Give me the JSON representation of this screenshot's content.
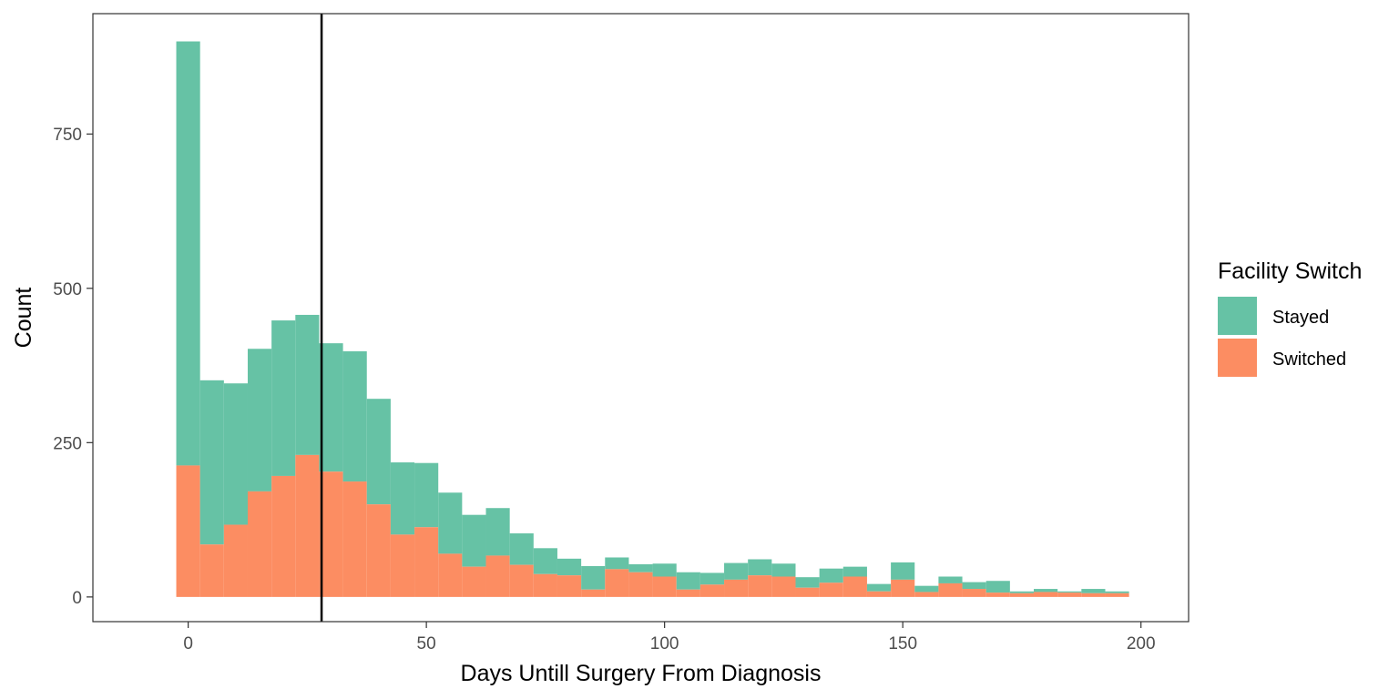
{
  "chart_data": {
    "type": "bar",
    "stacked": true,
    "title": "",
    "xlabel": "Days Untill Surgery From Diagnosis",
    "ylabel": "Count",
    "xlim": [
      -20,
      210
    ],
    "ylim": [
      -40,
      945
    ],
    "bin_width": 5,
    "x_ticks": [
      0,
      50,
      100,
      150,
      200
    ],
    "y_ticks": [
      0,
      250,
      500,
      750
    ],
    "x_tick_labels": [
      "0",
      "50",
      "100",
      "150",
      "200"
    ],
    "y_tick_labels": [
      "0",
      "250",
      "500",
      "750"
    ],
    "vline_x": 28,
    "grid": false,
    "legend": {
      "title": "Facility Switch",
      "position": "right",
      "entries": [
        "Stayed",
        "Switched"
      ]
    },
    "bin_centers": [
      0,
      5,
      10,
      15,
      20,
      25,
      30,
      35,
      40,
      45,
      50,
      55,
      60,
      65,
      70,
      75,
      80,
      85,
      90,
      95,
      100,
      105,
      110,
      115,
      120,
      125,
      130,
      135,
      140,
      145,
      150,
      155,
      160,
      165,
      170,
      175,
      180,
      185,
      190,
      195
    ],
    "series": [
      {
        "name": "Switched",
        "color": "#FC8D62",
        "values": [
          213,
          85,
          117,
          171,
          196,
          230,
          203,
          187,
          150,
          101,
          113,
          70,
          49,
          67,
          52,
          37,
          35,
          12,
          45,
          40,
          33,
          12,
          20,
          28,
          35,
          33,
          15,
          23,
          33,
          9,
          28,
          8,
          22,
          13,
          7,
          6,
          8,
          7,
          6,
          6
        ]
      },
      {
        "name": "Stayed",
        "color": "#66C2A5",
        "values": [
          687,
          266,
          229,
          231,
          252,
          227,
          208,
          211,
          171,
          117,
          104,
          99,
          84,
          77,
          51,
          42,
          27,
          38,
          19,
          13,
          21,
          28,
          19,
          27,
          26,
          21,
          17,
          23,
          16,
          12,
          28,
          10,
          11,
          11,
          19,
          3,
          5,
          2,
          7,
          3
        ]
      }
    ]
  }
}
